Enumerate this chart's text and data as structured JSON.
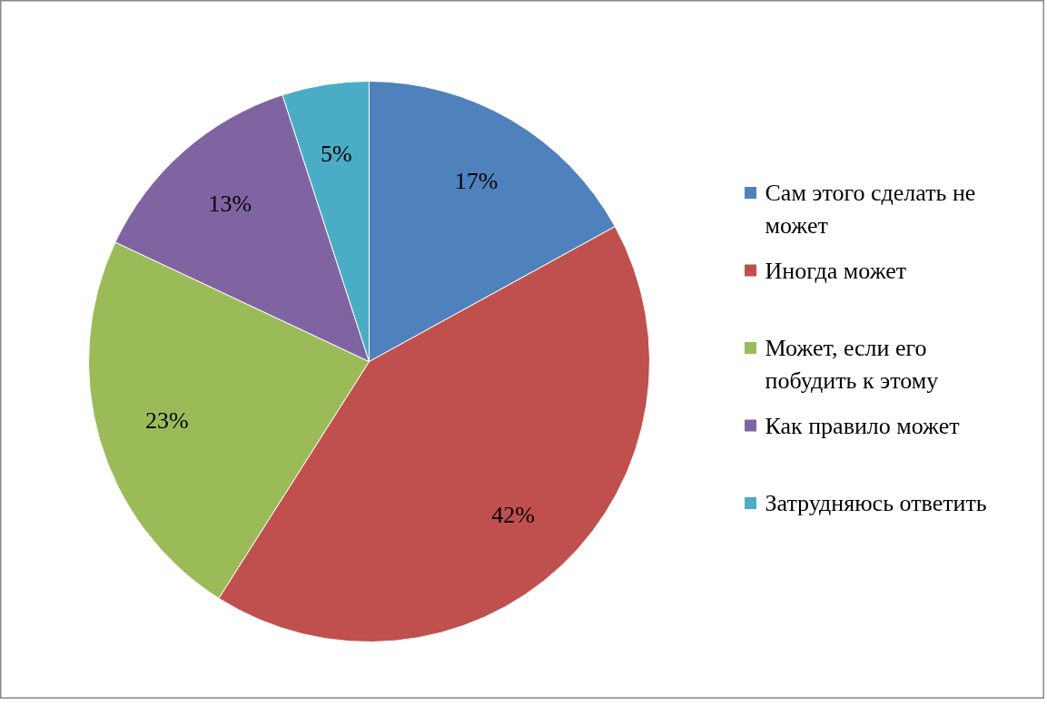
{
  "chart_data": {
    "type": "pie",
    "categories": [
      "Сам этого сделать не может",
      "Иногда может",
      "Может, если его побудить к этому",
      "Как правило может",
      "Затрудняюсь ответить"
    ],
    "values": [
      17,
      42,
      23,
      13,
      5
    ],
    "colors": [
      "#4f81bd",
      "#c0504d",
      "#9bbb59",
      "#8064a2",
      "#4bacc6"
    ],
    "value_labels": [
      "17%",
      "42%",
      "23%",
      "13%",
      "5%"
    ],
    "legend": "right"
  }
}
